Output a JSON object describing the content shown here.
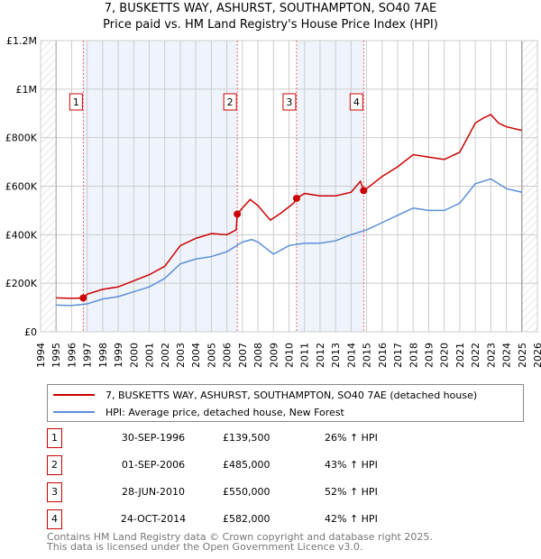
{
  "title": "7, BUSKETTS WAY, ASHURST, SOUTHAMPTON, SO40 7AE",
  "subtitle": "Price paid vs. HM Land Registry's House Price Index (HPI)",
  "chart_data": {
    "type": "line",
    "title": "7, BUSKETTS WAY, ASHURST, SOUTHAMPTON, SO40 7AE",
    "subtitle": "Price paid vs. HM Land Registry's House Price Index (HPI)",
    "xlim": [
      1994,
      2026
    ],
    "ylim": [
      0,
      1200000
    ],
    "x_ticks": [
      "1994",
      "1995",
      "1996",
      "1997",
      "1998",
      "1999",
      "2000",
      "2001",
      "2002",
      "2003",
      "2004",
      "2005",
      "2006",
      "2007",
      "2008",
      "2009",
      "2010",
      "2011",
      "2012",
      "2013",
      "2014",
      "2015",
      "2016",
      "2017",
      "2018",
      "2019",
      "2020",
      "2021",
      "2022",
      "2023",
      "2024",
      "2025",
      "2026"
    ],
    "y_ticks": [
      {
        "v": 0,
        "label": "£0"
      },
      {
        "v": 200000,
        "label": "£200K"
      },
      {
        "v": 400000,
        "label": "£400K"
      },
      {
        "v": 600000,
        "label": "£600K"
      },
      {
        "v": 800000,
        "label": "£800K"
      },
      {
        "v": 1000000,
        "label": "£1M"
      },
      {
        "v": 1200000,
        "label": "£1.2M"
      }
    ],
    "grid": true,
    "series": [
      {
        "name": "7, BUSKETTS WAY, ASHURST, SOUTHAMPTON, SO40 7AE (detached house)",
        "color": "#cc0000",
        "x": [
          1995,
          1996,
          1996.75,
          1997,
          1998,
          1999,
          2000,
          2001,
          2002,
          2003,
          2004,
          2005,
          2006,
          2006.6,
          2006.67,
          2007,
          2007.5,
          2008,
          2008.8,
          2009.5,
          2010.3,
          2010.49,
          2011,
          2012,
          2013,
          2014,
          2014.6,
          2014.81,
          2015,
          2016,
          2017,
          2018,
          2019,
          2020,
          2021,
          2022,
          2022.5,
          2023,
          2023.5,
          2024,
          2025
        ],
        "y": [
          140000,
          138000,
          139500,
          155000,
          175000,
          185000,
          210000,
          235000,
          270000,
          355000,
          385000,
          405000,
          400000,
          420000,
          485000,
          510000,
          545000,
          520000,
          460000,
          490000,
          530000,
          550000,
          570000,
          560000,
          560000,
          575000,
          620000,
          582000,
          590000,
          640000,
          680000,
          730000,
          720000,
          710000,
          740000,
          860000,
          880000,
          895000,
          860000,
          845000,
          830000
        ]
      },
      {
        "name": "HPI: Average price, detached house, New Forest",
        "color": "#5b8fd6",
        "x": [
          1995,
          1996,
          1997,
          1998,
          1999,
          2000,
          2001,
          2002,
          2003,
          2004,
          2005,
          2006,
          2007,
          2007.6,
          2008,
          2009,
          2010,
          2011,
          2012,
          2013,
          2014,
          2015,
          2016,
          2017,
          2018,
          2019,
          2020,
          2021,
          2022,
          2023,
          2024,
          2025
        ],
        "y": [
          110000,
          108000,
          115000,
          135000,
          145000,
          165000,
          185000,
          220000,
          280000,
          300000,
          310000,
          330000,
          370000,
          380000,
          370000,
          320000,
          355000,
          365000,
          365000,
          375000,
          400000,
          420000,
          450000,
          480000,
          510000,
          500000,
          500000,
          530000,
          610000,
          630000,
          590000,
          575000
        ]
      }
    ],
    "sales": [
      {
        "label": "1",
        "x": 1996.75,
        "y": 139500
      },
      {
        "label": "2",
        "x": 2006.67,
        "y": 485000
      },
      {
        "label": "3",
        "x": 2010.49,
        "y": 550000
      },
      {
        "label": "4",
        "x": 2014.81,
        "y": 582000
      }
    ],
    "shaded_ranges": [
      [
        1996.75,
        2006.67
      ],
      [
        2010.49,
        2014.81
      ]
    ],
    "future_from": 2025.0
  },
  "legend": [
    {
      "label": "7, BUSKETTS WAY, ASHURST, SOUTHAMPTON, SO40 7AE (detached house)",
      "color": "#cc0000"
    },
    {
      "label": "HPI: Average price, detached house, New Forest",
      "color": "#5b8fd6"
    }
  ],
  "table": [
    {
      "num": "1",
      "date": "30-SEP-1996",
      "price": "£139,500",
      "hpi": "26% ↑ HPI"
    },
    {
      "num": "2",
      "date": "01-SEP-2006",
      "price": "£485,000",
      "hpi": "43% ↑ HPI"
    },
    {
      "num": "3",
      "date": "28-JUN-2010",
      "price": "£550,000",
      "hpi": "52% ↑ HPI"
    },
    {
      "num": "4",
      "date": "24-OCT-2014",
      "price": "£582,000",
      "hpi": "42% ↑ HPI"
    }
  ],
  "footer": [
    "Contains HM Land Registry data © Crown copyright and database right 2025.",
    "This data is licensed under the Open Government Licence v3.0."
  ]
}
